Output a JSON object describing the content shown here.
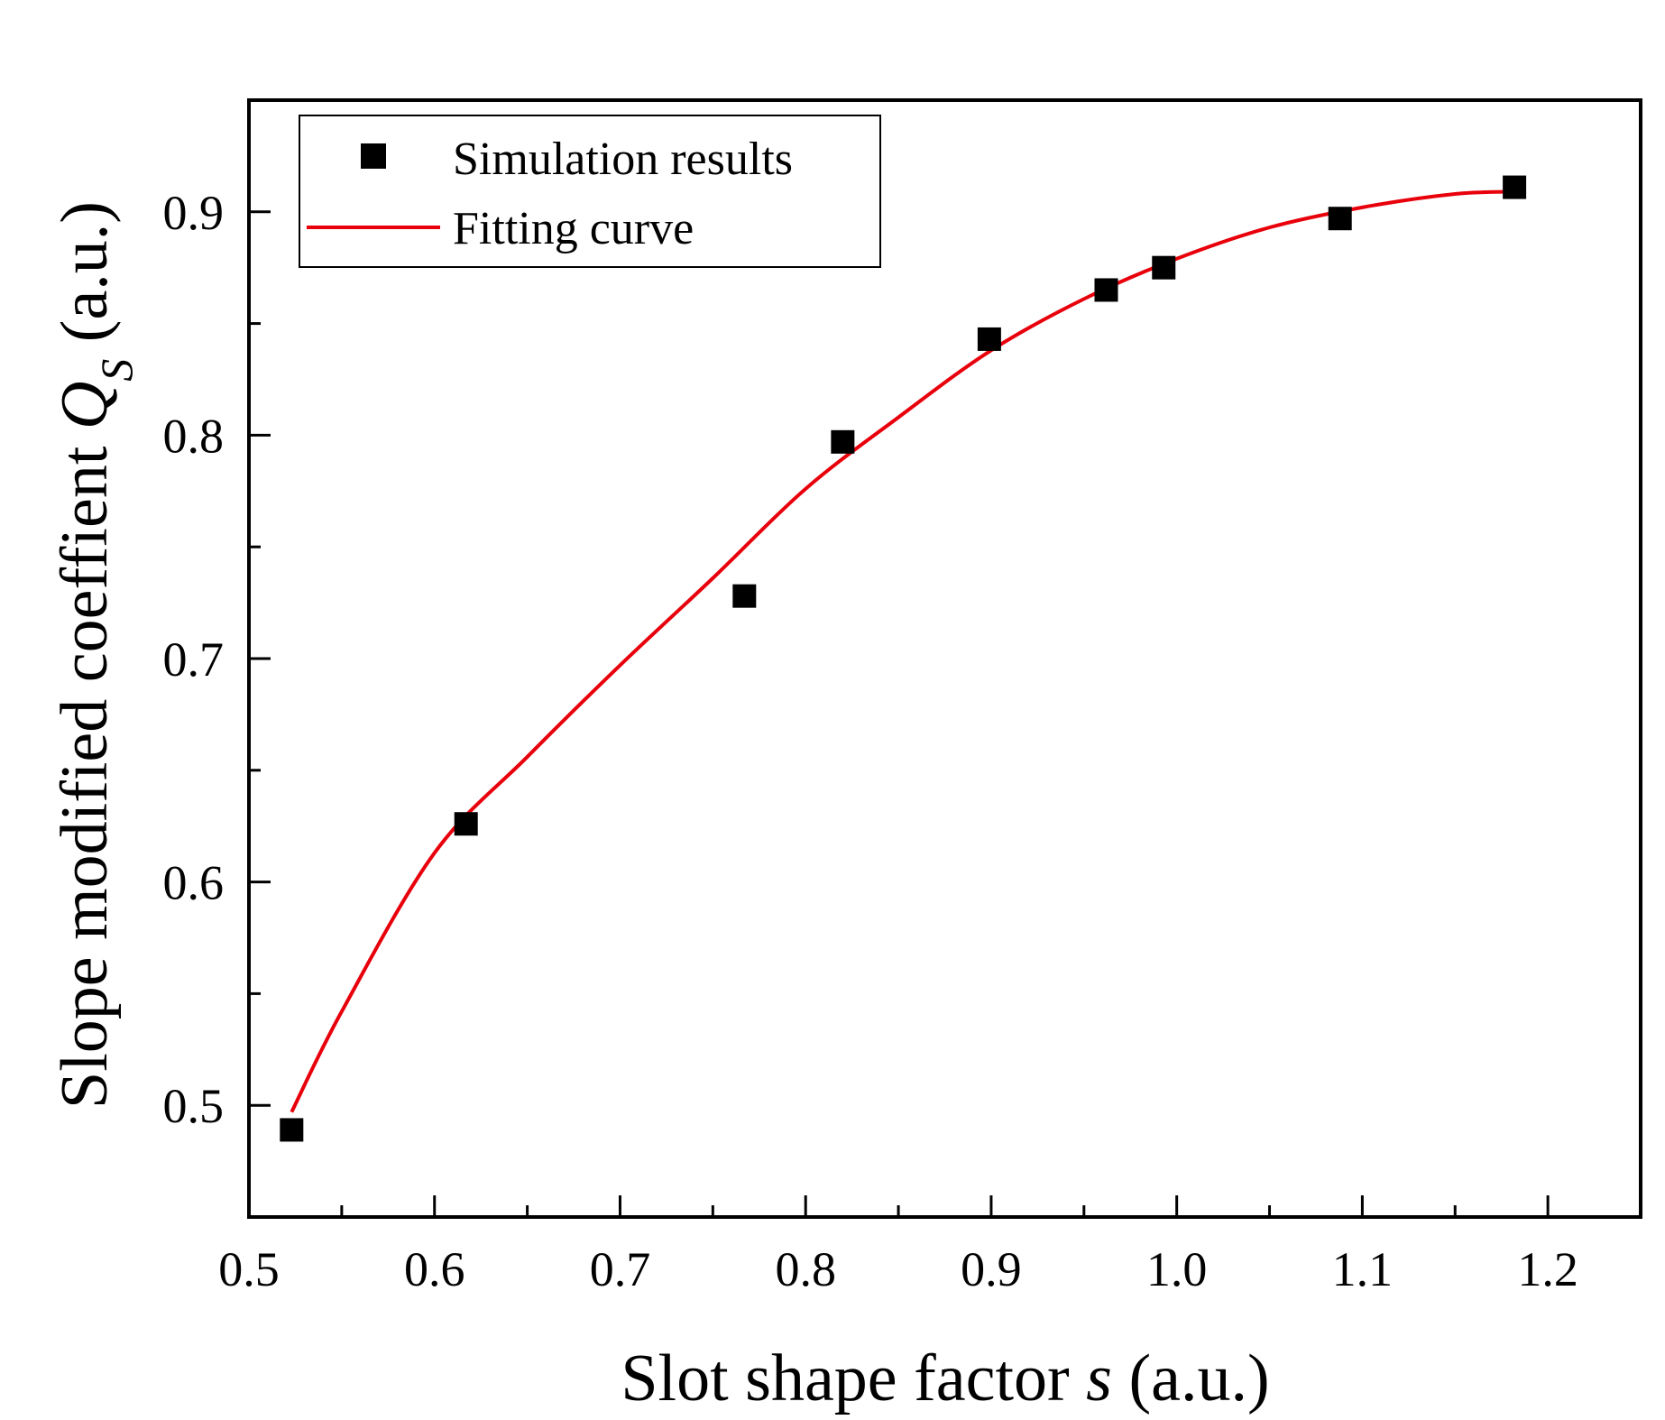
{
  "chart_data": {
    "type": "scatter",
    "title": "",
    "xlabel": {
      "main": "Slot shape factor ",
      "symbol": "s",
      "unit": " (a.u.)"
    },
    "ylabel": {
      "main": "Slope modified coeffient ",
      "symbol": "Q",
      "subscript": "S",
      "unit": " (a.u.)"
    },
    "xlim": [
      0.5,
      1.25
    ],
    "ylim": [
      0.45,
      0.95
    ],
    "x_ticks": [
      0.5,
      0.6,
      0.7,
      0.8,
      0.9,
      1.0,
      1.1,
      1.2
    ],
    "x_tick_labels": [
      "0.5",
      "0.6",
      "0.7",
      "0.8",
      "0.9",
      "1.0",
      "1.1",
      "1.2"
    ],
    "y_ticks": [
      0.5,
      0.6,
      0.7,
      0.8,
      0.9
    ],
    "y_tick_labels": [
      "0.5",
      "0.6",
      "0.7",
      "0.8",
      "0.9"
    ],
    "grid": false,
    "legend_position": "top-left",
    "series": [
      {
        "name": "Simulation results",
        "kind": "scatter",
        "marker": "square",
        "color": "#000000",
        "x": [
          0.523,
          0.617,
          0.767,
          0.82,
          0.899,
          0.962,
          0.993,
          1.088,
          1.182
        ],
        "y": [
          0.489,
          0.626,
          0.728,
          0.797,
          0.843,
          0.865,
          0.875,
          0.897,
          0.911
        ]
      },
      {
        "name": "Fitting curve",
        "kind": "line",
        "color": "#e8000b",
        "x": [
          0.523,
          0.55,
          0.6,
          0.65,
          0.7,
          0.75,
          0.8,
          0.85,
          0.9,
          0.95,
          1.0,
          1.05,
          1.1,
          1.15,
          1.182
        ],
        "y": [
          0.497,
          0.542,
          0.613,
          0.656,
          0.697,
          0.736,
          0.776,
          0.808,
          0.838,
          0.861,
          0.879,
          0.893,
          0.902,
          0.908,
          0.909
        ]
      }
    ]
  }
}
